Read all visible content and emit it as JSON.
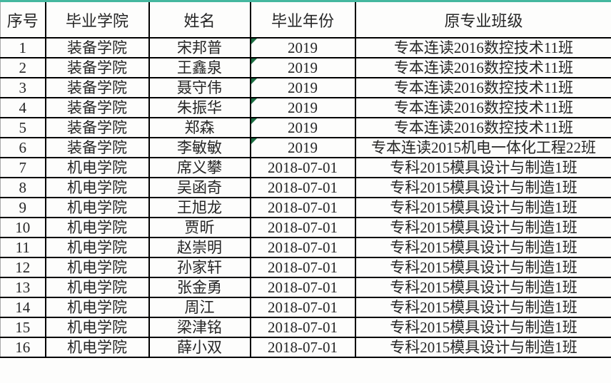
{
  "colors": {
    "accent_top": "#45b79f",
    "triangle_flag": "#1e7145",
    "grid_border": "#000000",
    "text": "#262626"
  },
  "table": {
    "headers": [
      "序号",
      "毕业学院",
      "姓名",
      "毕业年份",
      "原专业班级"
    ],
    "rows": [
      {
        "no": "1",
        "college": "装备学院",
        "name": "宋邦普",
        "year": "2019",
        "class": "专本连读2016数控技术11班",
        "text_flag": true
      },
      {
        "no": "2",
        "college": "装备学院",
        "name": "王鑫泉",
        "year": "2019",
        "class": "专本连读2016数控技术11班",
        "text_flag": true
      },
      {
        "no": "3",
        "college": "装备学院",
        "name": "聂守伟",
        "year": "2019",
        "class": "专本连读2016数控技术11班",
        "text_flag": true
      },
      {
        "no": "4",
        "college": "装备学院",
        "name": "朱振华",
        "year": "2019",
        "class": "专本连读2016数控技术11班",
        "text_flag": true
      },
      {
        "no": "5",
        "college": "装备学院",
        "name": "郑森",
        "year": "2019",
        "class": "专本连读2016数控技术11班",
        "text_flag": true
      },
      {
        "no": "6",
        "college": "装备学院",
        "name": "李敏敏",
        "year": "2019",
        "class": "专本连读2015机电一体化工程22班",
        "text_flag": true
      },
      {
        "no": "7",
        "college": "机电学院",
        "name": "席义攀",
        "year": "2018-07-01",
        "class": "专科2015模具设计与制造1班",
        "text_flag": false
      },
      {
        "no": "8",
        "college": "机电学院",
        "name": "吴函奇",
        "year": "2018-07-01",
        "class": "专科2015模具设计与制造1班",
        "text_flag": false
      },
      {
        "no": "9",
        "college": "机电学院",
        "name": "王旭龙",
        "year": "2018-07-01",
        "class": "专科2015模具设计与制造1班",
        "text_flag": false
      },
      {
        "no": "10",
        "college": "机电学院",
        "name": "贾昕",
        "year": "2018-07-01",
        "class": "专科2015模具设计与制造1班",
        "text_flag": false
      },
      {
        "no": "11",
        "college": "机电学院",
        "name": "赵崇明",
        "year": "2018-07-01",
        "class": "专科2015模具设计与制造1班",
        "text_flag": false
      },
      {
        "no": "12",
        "college": "机电学院",
        "name": "孙家轩",
        "year": "2018-07-01",
        "class": "专科2015模具设计与制造1班",
        "text_flag": false
      },
      {
        "no": "13",
        "college": "机电学院",
        "name": "张金勇",
        "year": "2018-07-01",
        "class": "专科2015模具设计与制造1班",
        "text_flag": false
      },
      {
        "no": "14",
        "college": "机电学院",
        "name": "周江",
        "year": "2018-07-01",
        "class": "专科2015模具设计与制造1班",
        "text_flag": false
      },
      {
        "no": "15",
        "college": "机电学院",
        "name": "梁津铭",
        "year": "2018-07-01",
        "class": "专科2015模具设计与制造1班",
        "text_flag": false
      },
      {
        "no": "16",
        "college": "机电学院",
        "name": "薛小双",
        "year": "2018-07-01",
        "class": "专科2015模具设计与制造1班",
        "text_flag": false
      }
    ]
  }
}
